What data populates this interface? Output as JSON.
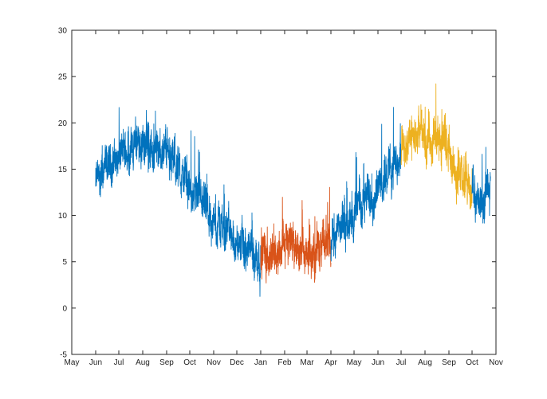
{
  "chart_data": {
    "type": "line",
    "x_axis": {
      "type": "date",
      "range": [
        "2015-05-01",
        "2016-11-01"
      ],
      "tick_labels": [
        "May",
        "Jun",
        "Jul",
        "Aug",
        "Sep",
        "Oct",
        "Nov",
        "Dec",
        "Jan",
        "Feb",
        "Mar",
        "Apr",
        "May",
        "Jun",
        "Jul",
        "Aug",
        "Sep",
        "Oct",
        "Nov"
      ],
      "tick_dates": [
        "2015-05-01",
        "2015-06-01",
        "2015-07-01",
        "2015-08-01",
        "2015-09-01",
        "2015-10-01",
        "2015-11-01",
        "2015-12-01",
        "2016-01-01",
        "2016-02-01",
        "2016-03-01",
        "2016-04-01",
        "2016-05-01",
        "2016-06-01",
        "2016-07-01",
        "2016-08-01",
        "2016-09-01",
        "2016-10-01",
        "2016-11-01"
      ]
    },
    "y_axis": {
      "range": [
        -5,
        30
      ],
      "ticks": [
        -5,
        0,
        5,
        10,
        15,
        20,
        25,
        30
      ]
    },
    "grid": false,
    "legend": "none",
    "series": [
      {
        "color": "#0072bd",
        "x_range": [
          "2015-06-01",
          "2016-01-01"
        ],
        "trend": [
          [
            "2015-06-01",
            13.5
          ],
          [
            "2015-06-15",
            15
          ],
          [
            "2015-07-01",
            16.5
          ],
          [
            "2015-07-15",
            17.3
          ],
          [
            "2015-08-01",
            18
          ],
          [
            "2015-08-15",
            17
          ],
          [
            "2015-09-01",
            17.5
          ],
          [
            "2015-09-15",
            15
          ],
          [
            "2015-10-01",
            13
          ],
          [
            "2015-10-15",
            11
          ],
          [
            "2015-11-01",
            9
          ],
          [
            "2015-11-15",
            9
          ],
          [
            "2015-12-01",
            7
          ],
          [
            "2015-12-15",
            6
          ],
          [
            "2016-01-01",
            5.5
          ]
        ]
      },
      {
        "color": "#d95319",
        "x_range": [
          "2016-01-01",
          "2016-04-01"
        ],
        "trend": [
          [
            "2016-01-01",
            6
          ],
          [
            "2016-01-15",
            6
          ],
          [
            "2016-02-01",
            7
          ],
          [
            "2016-02-15",
            6
          ],
          [
            "2016-03-01",
            5.5
          ],
          [
            "2016-03-15",
            6
          ],
          [
            "2016-04-01",
            8
          ]
        ]
      },
      {
        "color": "#0072bd",
        "x_range": [
          "2016-04-01",
          "2016-07-01"
        ],
        "trend": [
          [
            "2016-04-01",
            7
          ],
          [
            "2016-04-15",
            8.5
          ],
          [
            "2016-05-01",
            10
          ],
          [
            "2016-05-15",
            12
          ],
          [
            "2016-06-01",
            13
          ],
          [
            "2016-06-15",
            15
          ],
          [
            "2016-07-01",
            16
          ]
        ]
      },
      {
        "color": "#edb120",
        "x_range": [
          "2016-07-01",
          "2016-10-01"
        ],
        "trend": [
          [
            "2016-07-01",
            17
          ],
          [
            "2016-07-15",
            18
          ],
          [
            "2016-08-01",
            19
          ],
          [
            "2016-08-15",
            18
          ],
          [
            "2016-09-01",
            17
          ],
          [
            "2016-09-15",
            14
          ],
          [
            "2016-10-01",
            12.5
          ]
        ]
      },
      {
        "color": "#0072bd",
        "x_range": [
          "2016-10-01",
          "2016-10-25"
        ],
        "trend": [
          [
            "2016-10-01",
            13
          ],
          [
            "2016-10-10",
            11
          ],
          [
            "2016-10-20",
            12.5
          ],
          [
            "2016-10-25",
            13
          ]
        ]
      }
    ]
  }
}
